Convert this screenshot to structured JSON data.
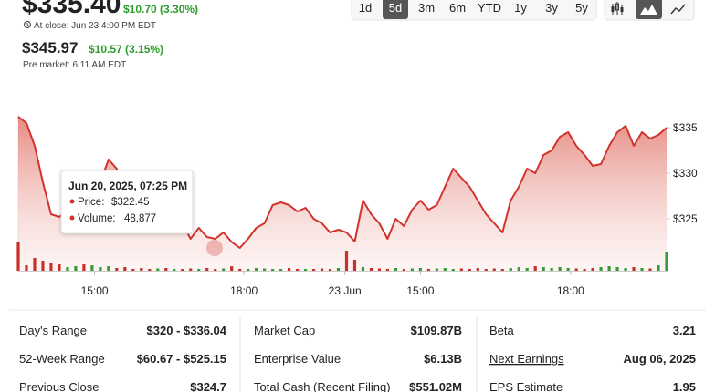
{
  "header": {
    "price": "$335.40",
    "change": "$10.70 (3.30%)",
    "close_time": "At close: Jun 23 4:00 PM EDT",
    "premarket_price": "$345.97",
    "premarket_change": "$10.57 (3.15%)",
    "premarket_time": "Pre market: 6:11 AM EDT"
  },
  "ranges": [
    "1d",
    "5d",
    "3m",
    "6m",
    "YTD",
    "1y",
    "3y",
    "5y"
  ],
  "active_range": "5d",
  "chart_data": {
    "type": "line",
    "values": [
      336.2,
      335.5,
      333,
      329,
      325.5,
      325.2,
      326,
      327,
      326.5,
      328,
      329,
      331.5,
      330.5,
      327.5,
      325.5,
      325,
      324.5,
      325.5,
      325,
      326.5,
      324.5,
      322.8,
      324,
      323,
      322.8,
      323.5,
      322.45,
      321.8,
      322.8,
      324,
      324.5,
      326.5,
      326.8,
      326.5,
      325.8,
      326.2,
      325,
      324.5,
      323.5,
      323.8,
      323.5,
      322.5,
      327,
      325.5,
      324.5,
      322.8,
      325,
      324.2,
      326,
      327,
      326,
      326.5,
      328.5,
      330.5,
      329.5,
      328.5,
      327,
      325.5,
      324.5,
      323.5,
      327,
      328.5,
      330.5,
      330,
      332,
      332.5,
      334,
      334.5,
      333,
      332,
      330.8,
      331,
      333,
      334.5,
      335.2,
      333,
      334.5,
      333.8,
      334.2,
      335
    ],
    "color": "#d0342c",
    "xlim": [
      0,
      79
    ],
    "xticks": [
      {
        "value": 9.3,
        "label": "15:00"
      },
      {
        "value": 27.5,
        "label": "18:00"
      },
      {
        "value": 39.8,
        "label": "23 Jun"
      },
      {
        "value": 49,
        "label": "15:00"
      },
      {
        "value": 67.3,
        "label": "18:00"
      }
    ],
    "ylim": [
      319.3,
      336.5
    ],
    "yticks": [
      {
        "value": 335,
        "label": "$335"
      },
      {
        "value": 330,
        "label": "$330"
      },
      {
        "value": 325,
        "label": "$325"
      }
    ],
    "volume": {
      "values": [
        320000,
        60000,
        140000,
        110000,
        80000,
        70000,
        40000,
        50000,
        70000,
        60000,
        40000,
        50000,
        30000,
        40000,
        20000,
        30000,
        20000,
        25000,
        30000,
        20000,
        20000,
        25000,
        20000,
        30000,
        20000,
        25000,
        48877,
        20000,
        20000,
        30000,
        25000,
        20000,
        20000,
        30000,
        20000,
        20000,
        20000,
        25000,
        20000,
        30000,
        220000,
        120000,
        40000,
        30000,
        25000,
        20000,
        30000,
        20000,
        25000,
        30000,
        20000,
        25000,
        30000,
        20000,
        25000,
        20000,
        30000,
        20000,
        25000,
        20000,
        30000,
        40000,
        30000,
        50000,
        40000,
        30000,
        40000,
        30000,
        25000,
        20000,
        30000,
        40000,
        50000,
        40000,
        30000,
        40000,
        30000,
        25000,
        60000,
        210000
      ],
      "lim": [
        0,
        350000
      ],
      "up_color": "#3a9a3a",
      "down_color": "#c8302a"
    },
    "tooltip": {
      "date": "Jun 20, 2025, 07:25 PM",
      "price_label": "Price:",
      "price": "$322.45",
      "volume_label": "Volume:",
      "volume": "48,877"
    }
  },
  "stats": [
    [
      {
        "label": "Day's Range",
        "value": "$320 - $336.04"
      },
      {
        "label": "52-Week Range",
        "value": "$60.67 - $525.15"
      },
      {
        "label": "Previous Close",
        "value": "$324.7"
      }
    ],
    [
      {
        "label": "Market Cap",
        "value": "$109.87B"
      },
      {
        "label": "Enterprise Value",
        "value": "$6.13B"
      },
      {
        "label": "Total Cash (Recent Filing)",
        "value": "$551.02M"
      }
    ],
    [
      {
        "label": "Beta",
        "value": "3.21"
      },
      {
        "label": "Next Earnings",
        "value": "Aug 06, 2025"
      },
      {
        "label": "EPS Estimate",
        "value": "1.95"
      }
    ]
  ]
}
